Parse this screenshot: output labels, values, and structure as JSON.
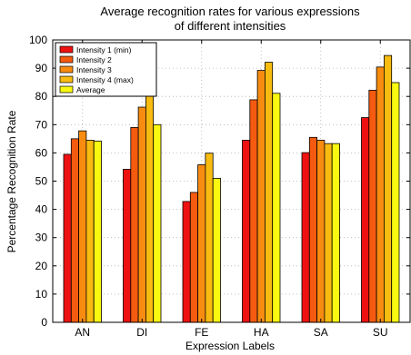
{
  "chart_data": {
    "type": "bar",
    "title": "Average recognition rates for various expressions",
    "subtitle": "of different intensities",
    "xlabel": "Expression Labels",
    "ylabel": "Percentage Recognition Rate",
    "categories": [
      "AN",
      "DI",
      "FE",
      "HA",
      "SA",
      "SU"
    ],
    "ylim": [
      0,
      100
    ],
    "yticks": [
      0,
      10,
      20,
      30,
      40,
      50,
      60,
      70,
      80,
      90,
      100
    ],
    "grid": true,
    "legend_position": "top-left",
    "series": [
      {
        "name": "Intensity 1 (min)",
        "color": "#ee1111",
        "values": [
          59.5,
          54.2,
          42.8,
          64.5,
          60.1,
          72.5
        ]
      },
      {
        "name": "Intensity 2",
        "color": "#f45a10",
        "values": [
          65.0,
          69.0,
          46.0,
          78.8,
          65.5,
          82.2
        ]
      },
      {
        "name": "Intensity 3",
        "color": "#f88c10",
        "values": [
          67.8,
          76.2,
          55.8,
          89.2,
          64.5,
          90.4
        ]
      },
      {
        "name": "Intensity 4 (max)",
        "color": "#f8bb10",
        "values": [
          64.5,
          80.5,
          59.9,
          92.1,
          63.3,
          94.5
        ]
      },
      {
        "name": "Average",
        "color": "#f8f810",
        "values": [
          64.2,
          70.0,
          51.0,
          81.1,
          63.3,
          84.9
        ]
      }
    ]
  }
}
